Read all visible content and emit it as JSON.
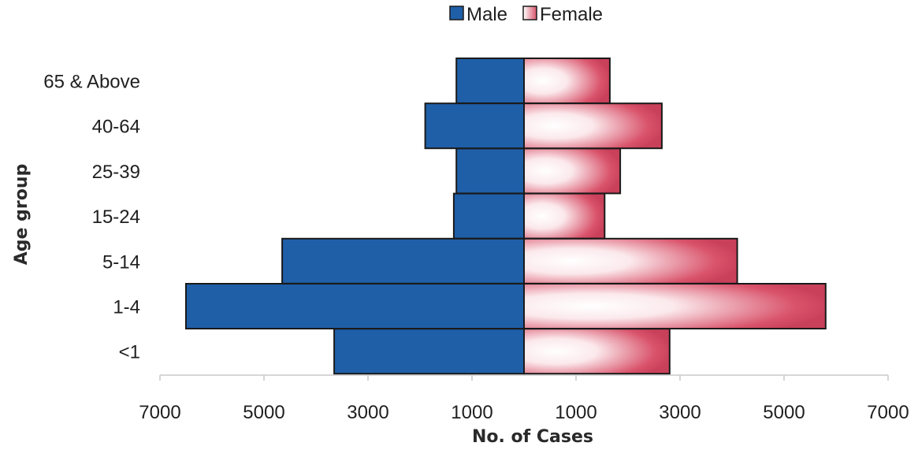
{
  "chart_data": {
    "type": "bar",
    "orientation": "horizontal",
    "subtype": "population-pyramid",
    "title": "",
    "xlabel": "No. of Cases",
    "ylabel": "Age group",
    "categories": [
      "<1",
      "1-4",
      "5-14",
      "15-24",
      "25-39",
      "40-64",
      "65 & Above"
    ],
    "series": [
      {
        "name": "Male",
        "side": "left",
        "color": "#1f5fa8",
        "values": [
          3650,
          6500,
          4650,
          1350,
          1300,
          1900,
          1300
        ]
      },
      {
        "name": "Female",
        "side": "right",
        "color": "#d9536b",
        "values": [
          2800,
          5800,
          4100,
          1550,
          1850,
          2650,
          1650
        ]
      }
    ],
    "xlim": [
      -7000,
      7000
    ],
    "xticks": [
      -7000,
      -5000,
      -3000,
      -1000,
      1000,
      3000,
      5000,
      7000
    ],
    "xtick_labels": [
      "7000",
      "5000",
      "3000",
      "1000",
      "1000",
      "3000",
      "5000",
      "7000"
    ],
    "legend": {
      "position": "top-center",
      "entries": [
        "Male",
        "Female"
      ]
    },
    "grid": false
  }
}
